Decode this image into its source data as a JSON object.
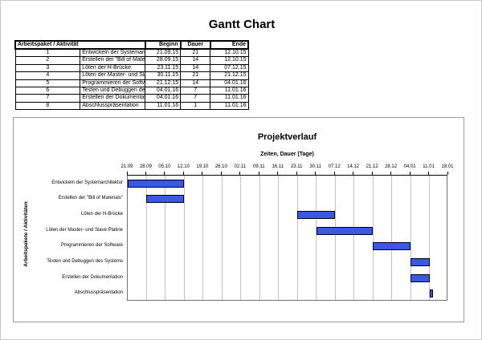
{
  "page": {
    "title": "Gantt Chart"
  },
  "table": {
    "headers": {
      "activity": "Arbeitspaket / Aktivität",
      "beginn": "Beginn",
      "dauer": "Dauer",
      "ende": "Ende"
    },
    "rows": [
      [
        "1",
        "Entwickeln der Systemarchitektur",
        "21.09.15",
        "21",
        "12.10.15"
      ],
      [
        "2",
        "Erstellen der \"Bill of Materials\"",
        "28.09.15",
        "14",
        "12.10.15"
      ],
      [
        "3",
        "Löten der H-Brücke",
        "23.11.15",
        "14",
        "07.12.15"
      ],
      [
        "4",
        "Löten der Master- und Slave Platine",
        "30.11.15",
        "21",
        "21.12.15"
      ],
      [
        "5",
        "Programmieren der Software",
        "21.12.15",
        "14",
        "04.01.16"
      ],
      [
        "6",
        "Testen und Debuggen des Systems",
        "04.01.16",
        "7",
        "11.01.16"
      ],
      [
        "7",
        "Erstellen der Dokumentation",
        "04.01.16",
        "7",
        "11.01.16"
      ],
      [
        "8",
        "Abschlusspräsentation",
        "11.01.16",
        "1",
        "11.01.16"
      ]
    ]
  },
  "chart_data": {
    "type": "bar",
    "orientation": "horizontal-gantt",
    "title": "Projektverlauf",
    "subtitle": "Zeiten, Dauer (Tage)",
    "y_axis_title": "Arbeitspakete / Aktivitäten",
    "x_ticks": [
      "21.09",
      "28.09",
      "05.10",
      "12.10",
      "19.10",
      "26.10",
      "02.11",
      "09.11",
      "16.11",
      "23.11",
      "30.11",
      "07.12",
      "14.12",
      "21.12",
      "28.12",
      "04.01",
      "11.01",
      "18.01"
    ],
    "axis_start_date": "21.09.15",
    "axis_total_days": 119,
    "grid": true,
    "legend": "none",
    "tasks": [
      {
        "label": "Entwickeln der Systemarchitektur",
        "start": "21.09.15",
        "offset_days": 0,
        "duration_days": 21,
        "end": "12.10.15"
      },
      {
        "label": "Erstellen der \"Bill of Materials\"",
        "start": "28.09.15",
        "offset_days": 7,
        "duration_days": 14,
        "end": "12.10.15"
      },
      {
        "label": "Löten der H-Brücke",
        "start": "23.11.15",
        "offset_days": 63,
        "duration_days": 14,
        "end": "07.12.15"
      },
      {
        "label": "Löten der Master- und Slave Platine",
        "start": "30.11.15",
        "offset_days": 70,
        "duration_days": 21,
        "end": "21.12.15"
      },
      {
        "label": "Programmieren der Software",
        "start": "21.12.15",
        "offset_days": 91,
        "duration_days": 14,
        "end": "04.01.16"
      },
      {
        "label": "Testen und Debuggen des Systems",
        "start": "04.01.16",
        "offset_days": 105,
        "duration_days": 7,
        "end": "11.01.16"
      },
      {
        "label": "Erstellen der Dokumentation",
        "start": "04.01.16",
        "offset_days": 105,
        "duration_days": 7,
        "end": "11.01.16"
      },
      {
        "label": "Abschlusspräsentation",
        "start": "11.01.16",
        "offset_days": 112,
        "duration_days": 1,
        "end": "11.01.16"
      }
    ],
    "colors": {
      "bar_fill": "#3a57e8",
      "bar_border": "#00001e",
      "gridline": "#c3c3c3",
      "plot_border": "#707070",
      "frame_border": "#9a9a9a",
      "text": "#000000"
    }
  }
}
